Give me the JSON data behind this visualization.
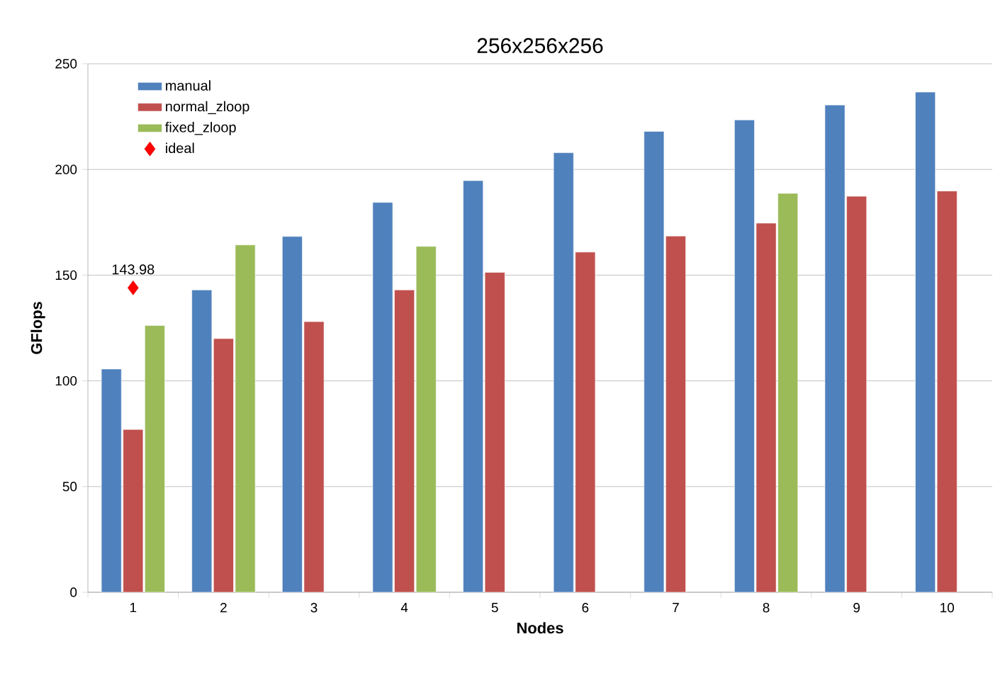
{
  "chart_data": {
    "type": "bar",
    "title": "256x256x256",
    "xlabel": "Nodes",
    "ylabel": "GFlops",
    "categories": [
      "1",
      "2",
      "3",
      "4",
      "5",
      "6",
      "7",
      "8",
      "9",
      "10"
    ],
    "series": [
      {
        "name": "manual",
        "color": "#4f81bd",
        "values": [
          105.6,
          143.0,
          168.3,
          184.4,
          194.7,
          207.9,
          218.0,
          223.4,
          230.5,
          236.6
        ]
      },
      {
        "name": "normal_zloop",
        "color": "#c0504d",
        "values": [
          77.0,
          120.0,
          128.0,
          143.0,
          151.3,
          160.9,
          168.5,
          174.6,
          187.3,
          189.8
        ]
      },
      {
        "name": "fixed_zloop",
        "color": "#9bbb59",
        "values": [
          126.2,
          164.3,
          null,
          163.6,
          null,
          null,
          null,
          188.7,
          null,
          null
        ]
      },
      {
        "name": "ideal",
        "type": "scatter",
        "color": "#ff0000",
        "x": [
          "1"
        ],
        "values": [
          143.98
        ],
        "value_labels": [
          "143.98"
        ],
        "marker": "diamond"
      }
    ],
    "ylim": [
      0,
      250
    ],
    "yticks": [
      0,
      50,
      100,
      150,
      200,
      250
    ],
    "grid": "y",
    "legend": "top left"
  }
}
